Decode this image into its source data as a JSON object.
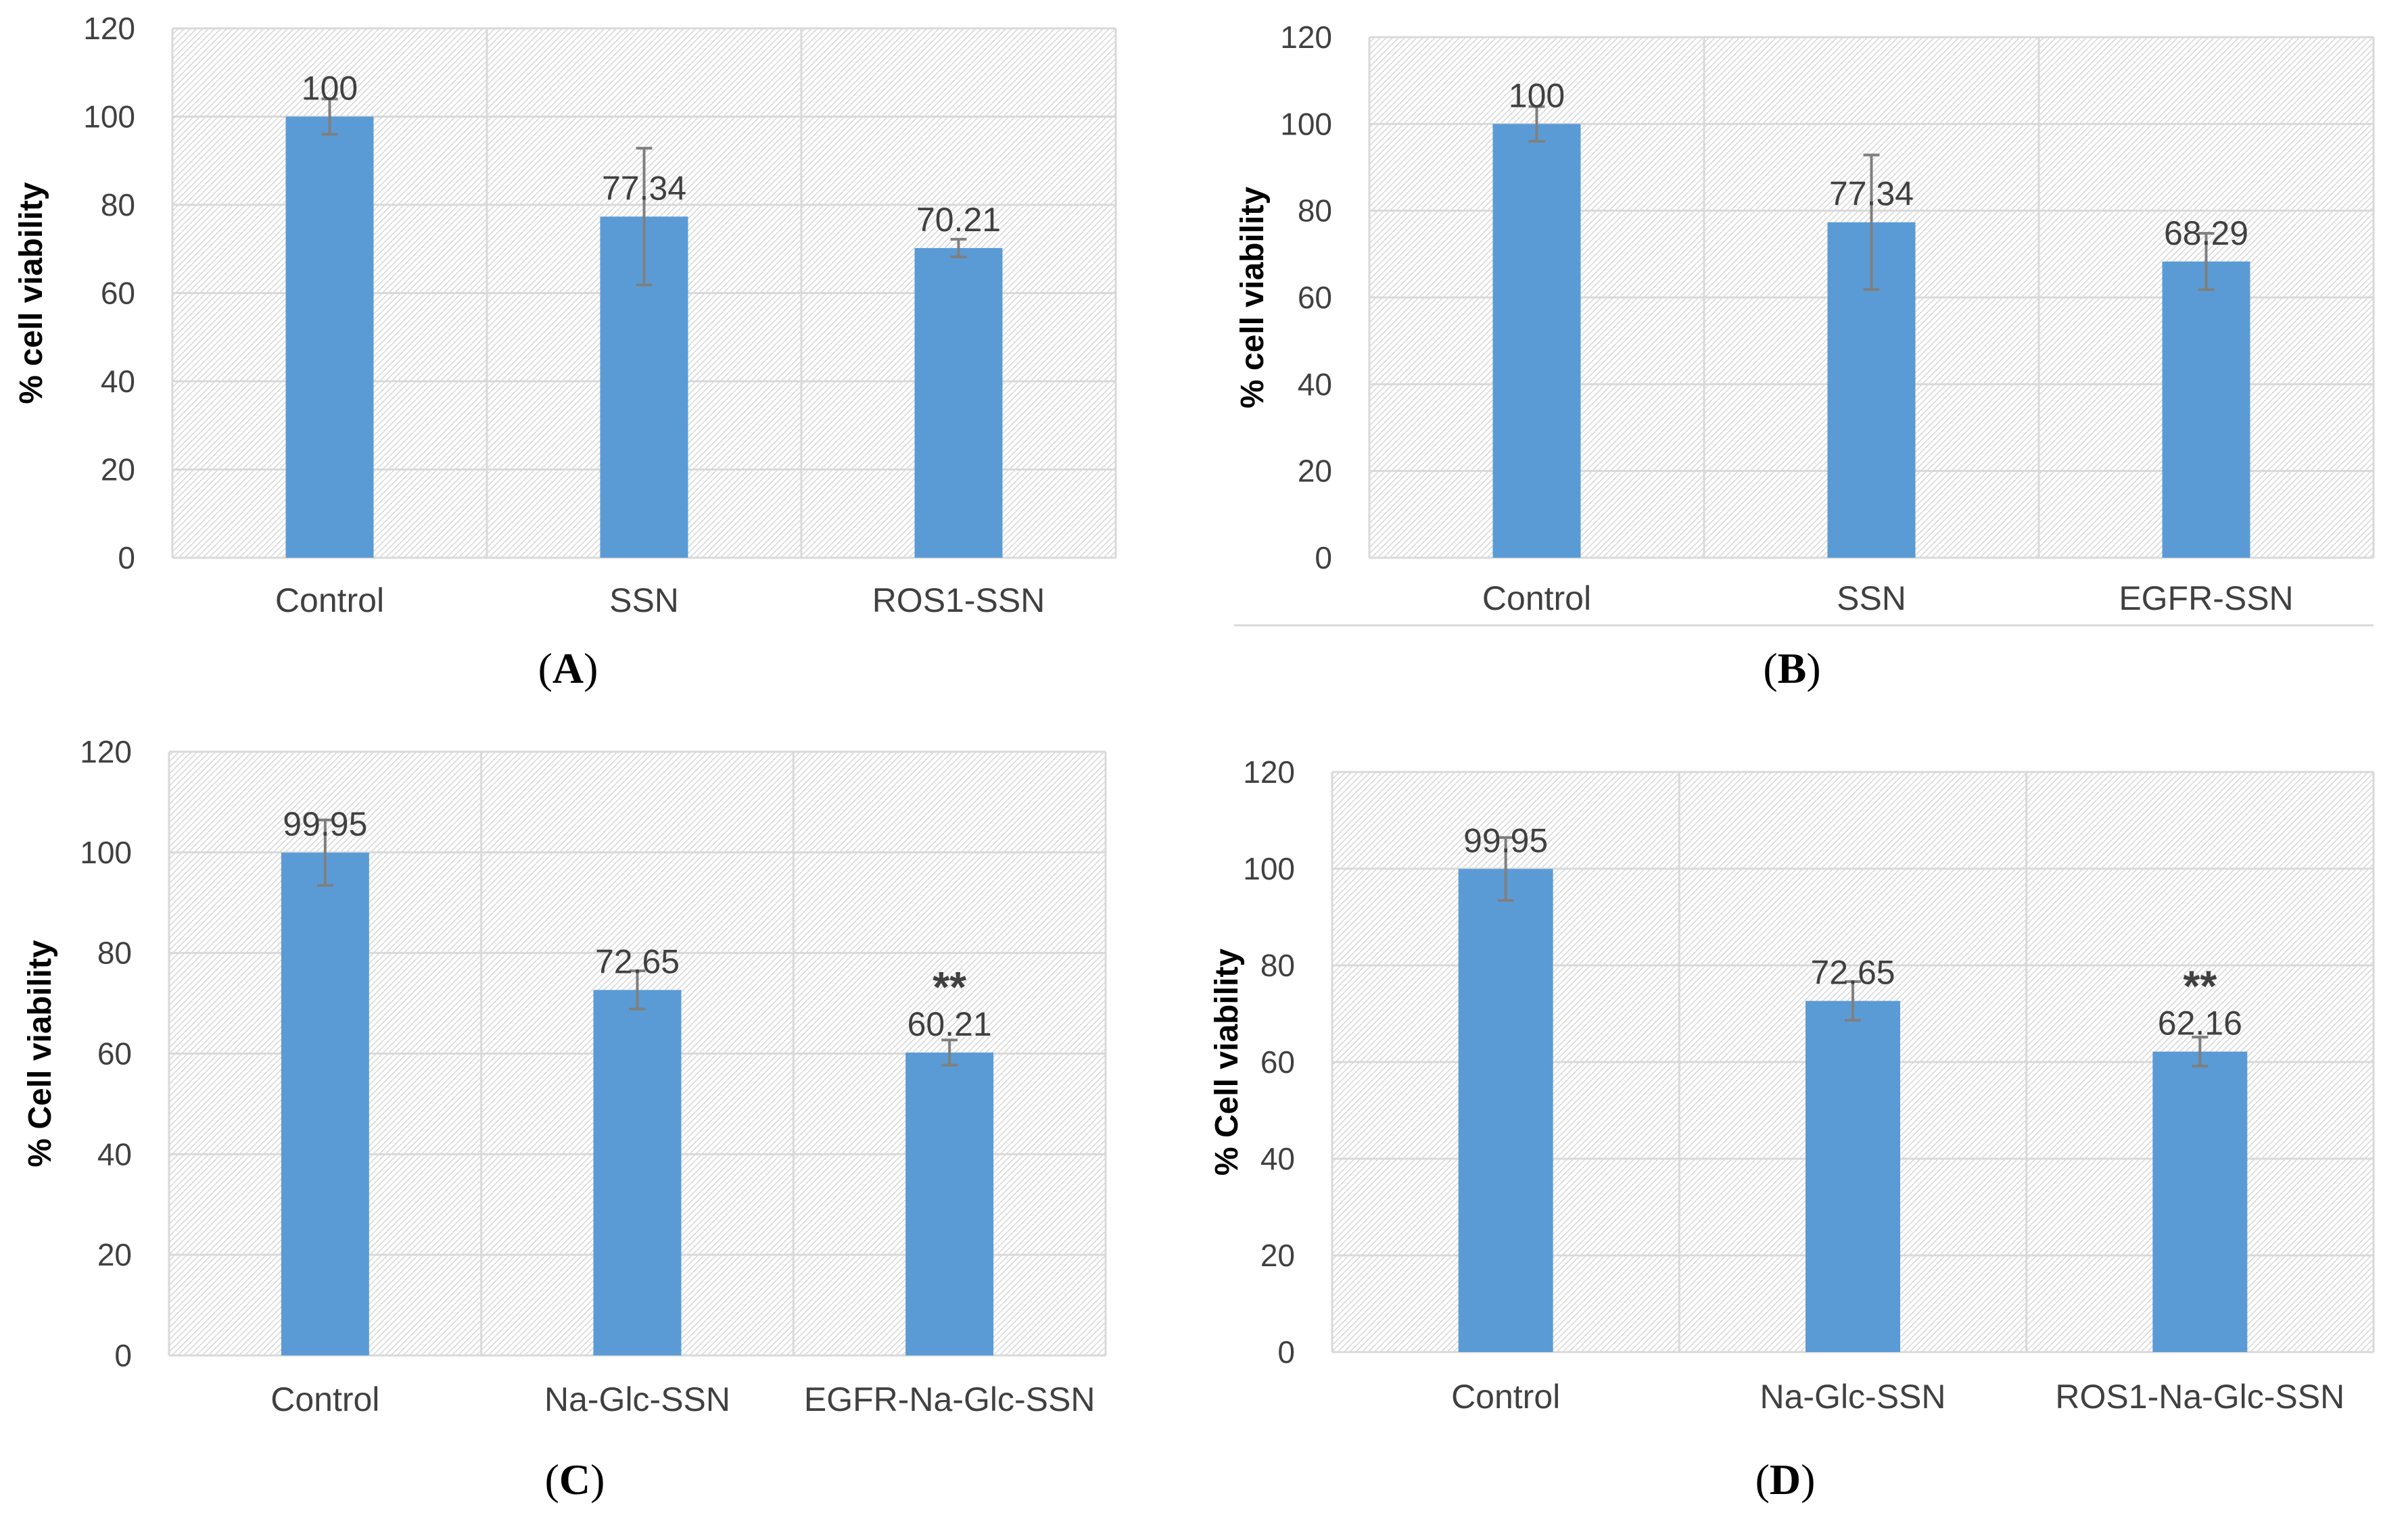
{
  "figure": {
    "panels": [
      "A",
      "B",
      "C",
      "D"
    ]
  },
  "chart_data": [
    {
      "panel": "A",
      "type": "bar",
      "title": "",
      "xlabel": "",
      "ylabel": "% cell viability",
      "ylim": [
        0,
        120
      ],
      "yticks": [
        0,
        20,
        40,
        60,
        80,
        100,
        120
      ],
      "categories": [
        "Control",
        "SSN",
        "ROS1-SSN"
      ],
      "values": [
        100,
        77.34,
        70.21
      ],
      "value_labels": [
        "100",
        "77.34",
        "70.21"
      ],
      "errors": [
        4,
        15.5,
        2
      ],
      "significance": [
        "",
        "",
        ""
      ],
      "color": "#5b9bd5",
      "panel_label": "A"
    },
    {
      "panel": "B",
      "type": "bar",
      "title": "",
      "xlabel": "",
      "ylabel": "% cell viability",
      "ylim": [
        0,
        120
      ],
      "yticks": [
        0,
        20,
        40,
        60,
        80,
        100,
        120
      ],
      "categories": [
        "Control",
        "SSN",
        "EGFR-SSN"
      ],
      "values": [
        100,
        77.34,
        68.29
      ],
      "value_labels": [
        "100",
        "77.34",
        "68.29"
      ],
      "errors": [
        4,
        15.5,
        6.5
      ],
      "significance": [
        "",
        "",
        ""
      ],
      "color": "#5b9bd5",
      "panel_label": "B"
    },
    {
      "panel": "C",
      "type": "bar",
      "title": "",
      "xlabel": "",
      "ylabel": "% Cell viability",
      "ylim": [
        0,
        120
      ],
      "yticks": [
        0,
        20,
        40,
        60,
        80,
        100,
        120
      ],
      "categories": [
        "Control",
        "Na-Glc-SSN",
        "EGFR-Na-Glc-SSN"
      ],
      "values": [
        99.95,
        72.65,
        60.21
      ],
      "value_labels": [
        "99.95",
        "72.65",
        "60.21"
      ],
      "errors": [
        6.5,
        3.8,
        2.5
      ],
      "significance": [
        "",
        "",
        "**"
      ],
      "color": "#5b9bd5",
      "panel_label": "C"
    },
    {
      "panel": "D",
      "type": "bar",
      "title": "",
      "xlabel": "",
      "ylabel": "% Cell viability",
      "ylim": [
        0,
        120
      ],
      "yticks": [
        0,
        20,
        40,
        60,
        80,
        100,
        120
      ],
      "categories": [
        "Control",
        "Na-Glc-SSN",
        "ROS1-Na-Glc-SSN"
      ],
      "values": [
        99.95,
        72.65,
        62.16
      ],
      "value_labels": [
        "99.95",
        "72.65",
        "62.16"
      ],
      "errors": [
        6.5,
        4,
        3
      ],
      "significance": [
        "",
        "",
        "**"
      ],
      "color": "#5b9bd5",
      "panel_label": "D"
    }
  ]
}
